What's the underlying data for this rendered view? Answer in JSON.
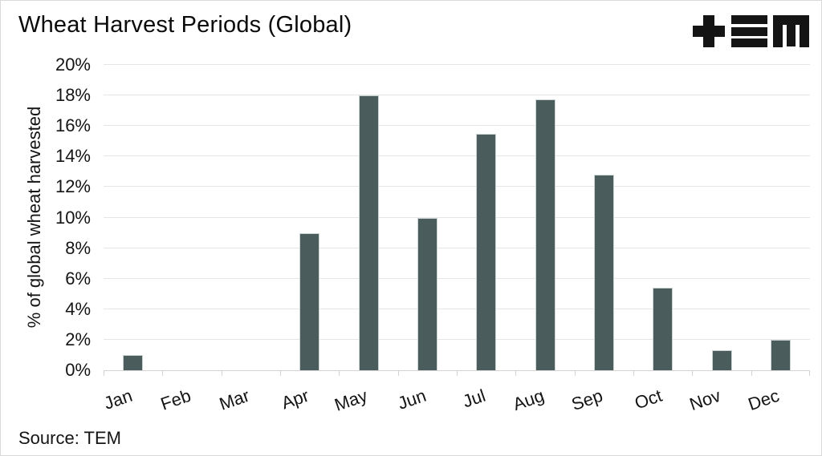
{
  "header": {
    "title": "Wheat Harvest Periods (Global)"
  },
  "branding": {
    "logo_name": "tem-logo",
    "logo_text": "TEM"
  },
  "footer": {
    "source": "Source: TEM"
  },
  "colors": {
    "bar": "#4a5c5b",
    "gridline": "#e5e5e5",
    "axis": "#d4d4d4",
    "text": "#141414",
    "background": "#ffffff"
  },
  "chart_data": {
    "type": "bar",
    "title": "Wheat Harvest Periods (Global)",
    "categories": [
      "Jan",
      "Feb",
      "Mar",
      "Apr",
      "May",
      "Jun",
      "Jul",
      "Aug",
      "Sep",
      "Oct",
      "Nov",
      "Dec"
    ],
    "values": [
      1,
      0,
      0,
      9,
      18,
      10,
      15.5,
      17.75,
      12.8,
      5.4,
      1.3,
      2
    ],
    "xlabel": "",
    "ylabel": "% of global wheat harvested",
    "ylim": [
      0,
      20
    ],
    "ytick_step": 2,
    "ytick_suffix": "%",
    "grid": "horizontal",
    "legend": "none",
    "bar_color": "#4a5c5b",
    "source": "Source: TEM"
  }
}
